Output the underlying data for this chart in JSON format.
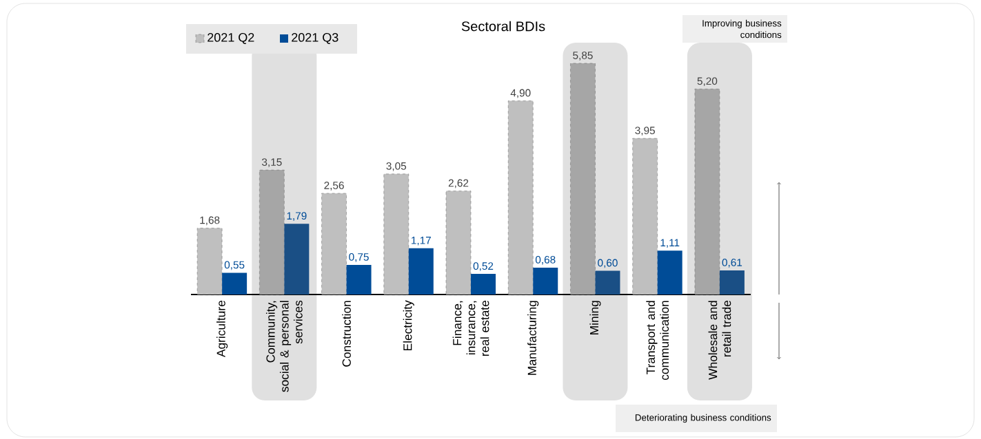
{
  "chart_data": {
    "type": "bar",
    "title": "Sectoral BDIs",
    "categories": [
      "Agriculture",
      "Community, social & personal services",
      "Construction",
      "Electricity",
      "Finance, insurance, real estate",
      "Manufacturing",
      "Mining",
      "Transport and communication",
      "Wholesale and retail trade"
    ],
    "series": [
      {
        "name": "2021 Q2",
        "color": "#bfbfbf",
        "colors": [
          "#bfbfbf",
          "#a6a6a6",
          "#bfbfbf",
          "#bfbfbf",
          "#bfbfbf",
          "#bfbfbf",
          "#a6a6a6",
          "#bfbfbf",
          "#a6a6a6"
        ],
        "values": [
          1.68,
          3.15,
          2.56,
          3.05,
          2.62,
          4.9,
          5.85,
          3.95,
          5.2
        ],
        "value_labels": [
          "1,68",
          "3,15",
          "2,56",
          "3,05",
          "2,62",
          "4,90",
          "5,85",
          "3,95",
          "5,20"
        ]
      },
      {
        "name": "2021 Q3",
        "color": "#004c97",
        "colors": [
          "#004c97",
          "#1a4f85",
          "#004c97",
          "#004c97",
          "#004c97",
          "#004c97",
          "#1a4f85",
          "#004c97",
          "#1a4f85"
        ],
        "values": [
          0.55,
          1.79,
          0.75,
          1.17,
          0.52,
          0.68,
          0.6,
          1.11,
          0.61
        ],
        "value_labels": [
          "0,55",
          "1,79",
          "0,75",
          "1,17",
          "0,52",
          "0,68",
          "0,60",
          "1,11",
          "0,61"
        ]
      }
    ],
    "annotations": [
      "Improving business conditions",
      "Deteriorating business conditions"
    ],
    "legend": "top left"
  }
}
